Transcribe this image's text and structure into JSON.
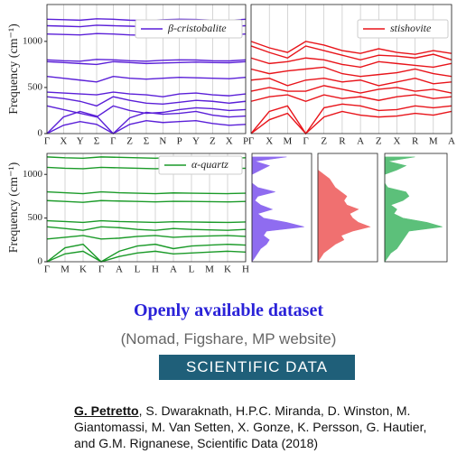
{
  "panels": [
    {
      "name": "β-cristobalite",
      "color": "#5a1fd8",
      "y_label": "Frequency (cm⁻¹)",
      "ylim": [
        0,
        1400
      ],
      "yticks": [
        0,
        500,
        1000
      ],
      "kpoints": [
        "Γ",
        "X",
        "Y",
        "Σ",
        "Γ",
        "Z",
        "Σ",
        "N",
        "P",
        "Y",
        "Z",
        "X",
        "P"
      ],
      "bands": [
        [
          1240,
          1235,
          1230,
          1245,
          1240,
          1230,
          1225,
          1235,
          1240,
          1238,
          1230,
          1228,
          1240
        ],
        [
          1170,
          1165,
          1160,
          1175,
          1170,
          1165,
          1160,
          1168,
          1172,
          1170,
          1165,
          1162,
          1170
        ],
        [
          1080,
          1075,
          1070,
          1085,
          1080,
          1070,
          1065,
          1075,
          1080,
          1078,
          1072,
          1070,
          1080
        ],
        [
          800,
          790,
          785,
          805,
          800,
          790,
          785,
          795,
          800,
          798,
          790,
          788,
          800
        ],
        [
          780,
          770,
          760,
          750,
          780,
          770,
          760,
          765,
          770,
          775,
          770,
          768,
          780
        ],
        [
          620,
          600,
          580,
          560,
          620,
          600,
          590,
          600,
          610,
          605,
          600,
          595,
          610
        ],
        [
          450,
          440,
          430,
          420,
          450,
          430,
          420,
          400,
          430,
          440,
          420,
          410,
          430
        ],
        [
          400,
          380,
          350,
          300,
          400,
          360,
          330,
          320,
          340,
          360,
          350,
          330,
          350
        ],
        [
          300,
          260,
          220,
          180,
          300,
          250,
          220,
          230,
          260,
          280,
          270,
          250,
          260
        ],
        [
          0,
          180,
          240,
          190,
          0,
          170,
          230,
          210,
          220,
          240,
          200,
          180,
          190
        ],
        [
          0,
          90,
          130,
          100,
          0,
          100,
          140,
          120,
          130,
          140,
          110,
          90,
          100
        ]
      ]
    },
    {
      "name": "stishovite",
      "color": "#e8141a",
      "ylim": [
        0,
        1400
      ],
      "kpoints": [
        "Γ",
        "X",
        "M",
        "Γ",
        "Z",
        "R",
        "A",
        "Z",
        "X",
        "R",
        "M",
        "A"
      ],
      "bands": [
        [
          1000,
          930,
          880,
          1000,
          960,
          900,
          870,
          920,
          880,
          860,
          900,
          870
        ],
        [
          950,
          880,
          820,
          950,
          900,
          850,
          800,
          850,
          840,
          820,
          860,
          800
        ],
        [
          820,
          760,
          780,
          820,
          800,
          750,
          720,
          780,
          760,
          740,
          720,
          760
        ],
        [
          700,
          650,
          680,
          700,
          720,
          650,
          620,
          640,
          660,
          700,
          650,
          620
        ],
        [
          580,
          600,
          520,
          580,
          600,
          560,
          580,
          520,
          560,
          600,
          540,
          560
        ],
        [
          460,
          500,
          460,
          460,
          520,
          480,
          440,
          480,
          500,
          460,
          480,
          440
        ],
        [
          350,
          400,
          420,
          350,
          420,
          380,
          400,
          360,
          400,
          420,
          380,
          400
        ],
        [
          0,
          240,
          300,
          0,
          280,
          320,
          300,
          250,
          260,
          300,
          280,
          300
        ],
        [
          0,
          150,
          220,
          0,
          180,
          240,
          200,
          180,
          190,
          220,
          200,
          240
        ]
      ]
    },
    {
      "name": "α-quartz",
      "color": "#1a9a28",
      "y_label": "Frequency (cm⁻¹)",
      "ylim": [
        0,
        1240
      ],
      "yticks": [
        0,
        500,
        1000
      ],
      "kpoints": [
        "Γ",
        "M",
        "K",
        "Γ",
        "A",
        "L",
        "H",
        "A",
        "L",
        "M",
        "K",
        "H"
      ],
      "bands": [
        [
          1200,
          1190,
          1185,
          1200,
          1195,
          1190,
          1185,
          1195,
          1190,
          1188,
          1185,
          1190
        ],
        [
          1080,
          1070,
          1065,
          1080,
          1075,
          1070,
          1065,
          1072,
          1070,
          1068,
          1065,
          1070
        ],
        [
          800,
          790,
          780,
          800,
          790,
          785,
          780,
          788,
          785,
          782,
          780,
          785
        ],
        [
          700,
          690,
          680,
          700,
          695,
          690,
          685,
          692,
          690,
          688,
          685,
          690
        ],
        [
          470,
          460,
          450,
          470,
          460,
          455,
          450,
          458,
          455,
          452,
          450,
          455
        ],
        [
          400,
          380,
          360,
          400,
          390,
          370,
          360,
          380,
          370,
          365,
          360,
          370
        ],
        [
          260,
          280,
          300,
          260,
          270,
          290,
          300,
          280,
          290,
          295,
          300,
          290
        ],
        [
          0,
          160,
          200,
          0,
          120,
          180,
          200,
          150,
          180,
          190,
          200,
          190
        ],
        [
          0,
          90,
          120,
          0,
          60,
          100,
          120,
          90,
          100,
          110,
          120,
          110
        ]
      ]
    }
  ],
  "dos": {
    "frequencies": [
      0,
      50,
      100,
      150,
      200,
      250,
      300,
      350,
      400,
      450,
      500,
      550,
      600,
      650,
      700,
      750,
      800,
      850,
      900,
      950,
      1000,
      1050,
      1100,
      1150,
      1200
    ],
    "series": [
      {
        "color": "#8f6cf0",
        "values": [
          0,
          0.05,
          0.1,
          0.15,
          0.25,
          0.3,
          0.2,
          0.25,
          0.9,
          0.6,
          0.2,
          0.1,
          0.35,
          0.15,
          0.05,
          0.1,
          0.4,
          0.1,
          0,
          0,
          0,
          0.15,
          0.3,
          0.05,
          0.6
        ]
      },
      {
        "color": "#f07070",
        "values": [
          0,
          0.05,
          0.1,
          0.2,
          0.3,
          0.45,
          0.4,
          0.6,
          0.9,
          0.7,
          0.6,
          0.55,
          0.7,
          0.5,
          0.45,
          0.5,
          0.4,
          0.3,
          0.25,
          0.2,
          0.1,
          0,
          0,
          0,
          0
        ]
      },
      {
        "color": "#5cc07a",
        "values": [
          0,
          0.05,
          0.1,
          0.2,
          0.25,
          0.3,
          0.35,
          0.4,
          0.95,
          0.7,
          0.3,
          0.15,
          0.2,
          0.1,
          0.3,
          0.4,
          0.35,
          0.05,
          0,
          0,
          0,
          0.2,
          0.35,
          0.05,
          0.5
        ]
      }
    ]
  },
  "headline": "Openly available dataset",
  "sources": "(Nomad, Figshare, MP website)",
  "logo": "SCIENTIFIC DATA",
  "citation": {
    "lead": "G. Petretto",
    "rest": ", S. Dwaraknath, H.P.C. Miranda, D. Winston, M. Giantomassi, M. Van Setten, X. Gonze, K. Persson, G. Hautier, and G.M. Rignanese, Scientific Data (2018)"
  }
}
